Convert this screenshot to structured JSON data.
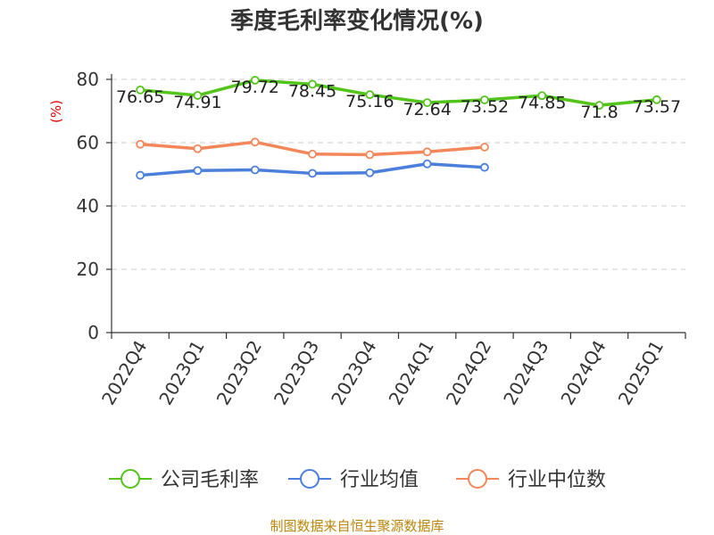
{
  "chart_data": {
    "type": "line",
    "title": "季度毛利率变化情况(%)",
    "ylabel": "(%)",
    "xlabel": "",
    "ylim": [
      0,
      80
    ],
    "yticks": [
      0,
      20,
      40,
      60,
      80
    ],
    "grid": true,
    "legend_position": "bottom",
    "categories": [
      "2022Q4",
      "2023Q1",
      "2023Q2",
      "2023Q3",
      "2023Q4",
      "2024Q1",
      "2024Q2",
      "2024Q3",
      "2024Q4",
      "2025Q1"
    ],
    "series": [
      {
        "name": "公司毛利率",
        "color": "#52c41a",
        "values": [
          76.65,
          74.91,
          79.72,
          78.45,
          75.16,
          72.64,
          73.52,
          74.85,
          71.8,
          73.57
        ],
        "labels": [
          "76.65",
          "74.91",
          "79.72",
          "78.45",
          "75.16",
          "72.64",
          "73.52",
          "74.85",
          "71.8",
          "73.57"
        ]
      },
      {
        "name": "行业均值",
        "color": "#4a7fdc",
        "values": [
          49.7,
          51.2,
          51.4,
          50.3,
          50.5,
          53.3,
          52.2,
          null,
          null,
          null
        ]
      },
      {
        "name": "行业中位数",
        "color": "#f4875a",
        "values": [
          59.5,
          58.1,
          60.2,
          56.4,
          56.2,
          57.1,
          58.6,
          null,
          null,
          null
        ]
      }
    ]
  },
  "footer": {
    "source": "制图数据来自恒生聚源数据库"
  }
}
